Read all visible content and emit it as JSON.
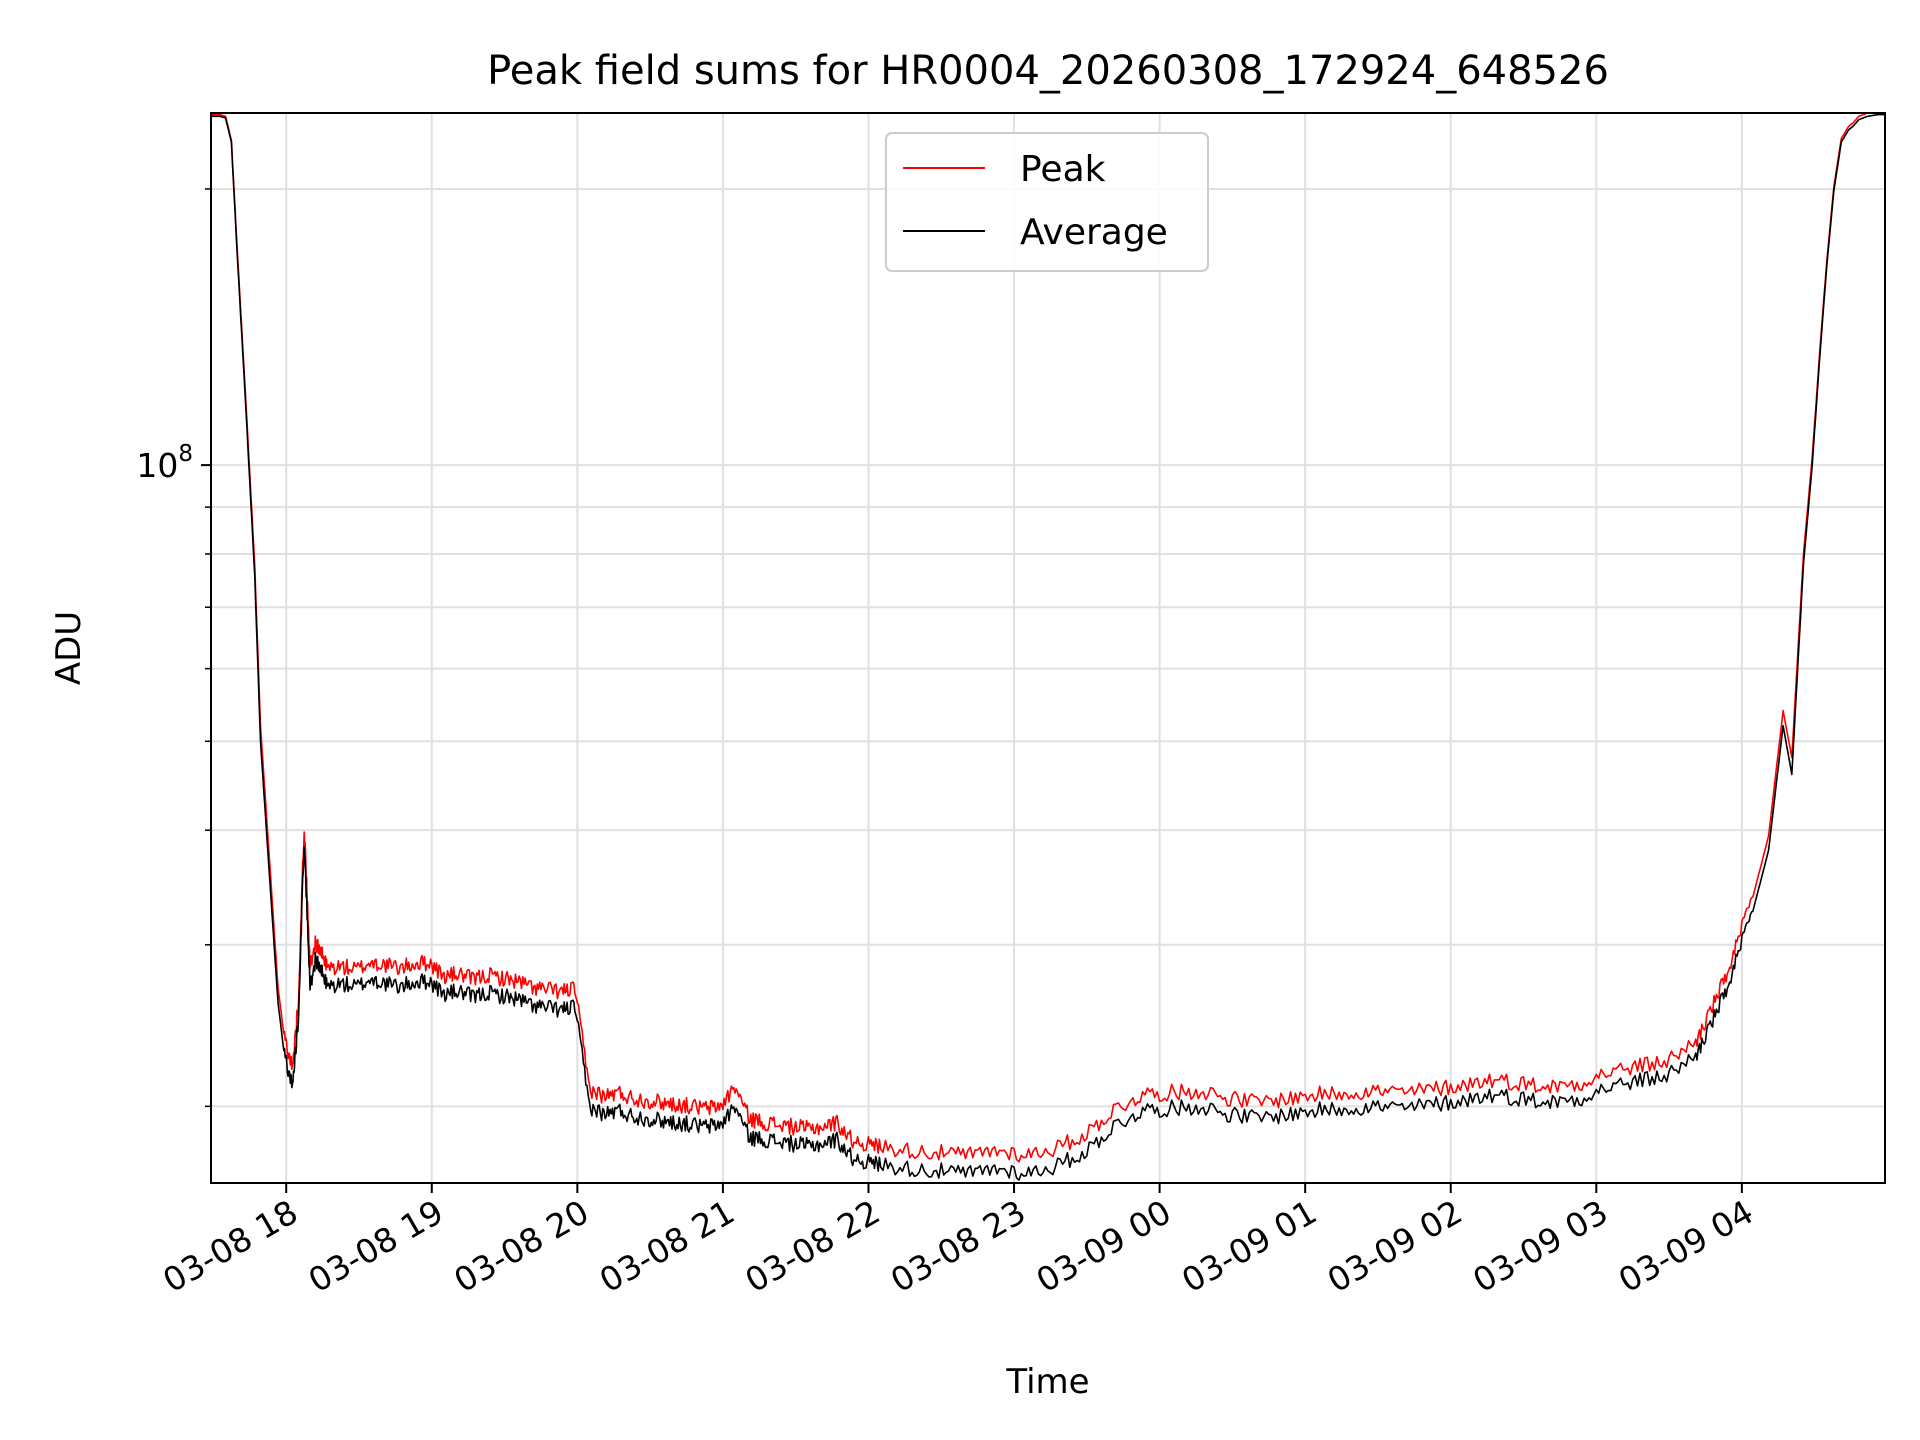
{
  "chart_data": {
    "type": "line",
    "title": "Peak field sums for HR0004_20260308_172924_648526",
    "xlabel": "Time",
    "ylabel": "ADU",
    "x_axis": {
      "unit": "hours since 03-08 17:29",
      "xlim": [
        0.0,
        11.5
      ],
      "ticks": [
        {
          "value": 0.5167,
          "label": "03-08 18"
        },
        {
          "value": 1.5167,
          "label": "03-08 19"
        },
        {
          "value": 2.5167,
          "label": "03-08 20"
        },
        {
          "value": 3.5167,
          "label": "03-08 21"
        },
        {
          "value": 4.5167,
          "label": "03-08 22"
        },
        {
          "value": 5.5167,
          "label": "03-08 23"
        },
        {
          "value": 6.5167,
          "label": "03-09 00"
        },
        {
          "value": 7.5167,
          "label": "03-09 01"
        },
        {
          "value": 8.5167,
          "label": "03-09 02"
        },
        {
          "value": 9.5167,
          "label": "03-09 03"
        },
        {
          "value": 10.5167,
          "label": "03-09 04"
        }
      ]
    },
    "y_axis": {
      "scale": "log",
      "ylim": [
        16500000,
        242000000
      ],
      "major_tick": {
        "value": 100000000,
        "base": "10",
        "exponent": "8"
      },
      "minor_ticks": [
        20000000,
        30000000,
        40000000,
        50000000,
        60000000,
        70000000,
        80000000,
        90000000,
        200000000
      ]
    },
    "grid": true,
    "legend": {
      "placement": "upper center",
      "entries": [
        {
          "label": "Peak",
          "color": "#ff0000"
        },
        {
          "label": "Average",
          "color": "#000000"
        }
      ]
    },
    "series": [
      {
        "name": "Average",
        "color": "#000000",
        "x": [
          0.0,
          0.06,
          0.1,
          0.14,
          0.18,
          0.24,
          0.3,
          0.34,
          0.4,
          0.46,
          0.5,
          0.56,
          0.6,
          0.64,
          0.68,
          0.72,
          0.76,
          0.8,
          0.9,
          1.0,
          1.1,
          1.2,
          1.3,
          1.4,
          1.5,
          1.6,
          1.7,
          1.8,
          1.9,
          2.0,
          2.1,
          2.2,
          2.3,
          2.42,
          2.5,
          2.6,
          2.7,
          2.8,
          2.9,
          3.0,
          3.1,
          3.2,
          3.3,
          3.4,
          3.5,
          3.6,
          3.7,
          3.8,
          3.9,
          4.0,
          4.1,
          4.2,
          4.3,
          4.4,
          4.5,
          4.6,
          4.8,
          5.0,
          5.2,
          5.4,
          5.6,
          5.8,
          6.0,
          6.2,
          6.4,
          6.6,
          6.8,
          7.0,
          7.2,
          7.4,
          7.6,
          7.8,
          8.0,
          8.2,
          8.4,
          8.6,
          8.8,
          9.0,
          9.2,
          9.4,
          9.6,
          9.8,
          10.0,
          10.2,
          10.3,
          10.4,
          10.5,
          10.6,
          10.7,
          10.8,
          10.86,
          10.9,
          10.94,
          11.0,
          11.05,
          11.1,
          11.15,
          11.2,
          11.25,
          11.28,
          11.32,
          11.38,
          11.45,
          11.5
        ],
        "y": [
          240000000,
          240000000,
          239000000,
          225000000,
          170000000,
          115000000,
          76000000,
          50000000,
          36000000,
          26000000,
          23000000,
          21000000,
          25000000,
          39000000,
          27000000,
          29000000,
          28000000,
          27000000,
          27200000,
          27000000,
          27500000,
          27200000,
          27000000,
          27300000,
          27400000,
          26500000,
          26700000,
          26300000,
          26600000,
          26400000,
          26200000,
          25800000,
          25600000,
          25500000,
          25700000,
          20000000,
          19600000,
          19800000,
          19500000,
          19400000,
          19300000,
          19200000,
          19100000,
          19000000,
          19100000,
          20000000,
          18500000,
          18400000,
          18300000,
          18200000,
          18100000,
          18200000,
          18400000,
          17600000,
          17400000,
          17300000,
          17100000,
          17000000,
          16900000,
          17100000,
          16900000,
          17200000,
          17800000,
          19000000,
          19800000,
          19900000,
          20000000,
          19600000,
          19400000,
          19600000,
          19800000,
          19900000,
          20000000,
          19900000,
          20100000,
          20300000,
          20600000,
          20400000,
          20200000,
          20400000,
          21000000,
          21300000,
          21600000,
          22700000,
          24500000,
          26500000,
          29500000,
          33000000,
          38000000,
          52000000,
          46000000,
          60000000,
          78000000,
          100000000,
          130000000,
          165000000,
          200000000,
          225000000,
          232000000,
          234000000,
          238000000,
          240000000,
          241000000,
          241000000
        ]
      },
      {
        "name": "Peak",
        "color": "#ff0000",
        "x": [
          0.0,
          0.06,
          0.1,
          0.14,
          0.18,
          0.24,
          0.3,
          0.34,
          0.4,
          0.46,
          0.5,
          0.56,
          0.6,
          0.64,
          0.68,
          0.72,
          0.76,
          0.8,
          0.9,
          1.0,
          1.1,
          1.2,
          1.3,
          1.4,
          1.5,
          1.6,
          1.7,
          1.8,
          1.9,
          2.0,
          2.1,
          2.2,
          2.3,
          2.42,
          2.5,
          2.6,
          2.7,
          2.8,
          2.9,
          3.0,
          3.1,
          3.2,
          3.3,
          3.4,
          3.5,
          3.6,
          3.7,
          3.8,
          3.9,
          4.0,
          4.1,
          4.2,
          4.3,
          4.4,
          4.5,
          4.6,
          4.8,
          5.0,
          5.2,
          5.4,
          5.6,
          5.8,
          6.0,
          6.2,
          6.4,
          6.6,
          6.8,
          7.0,
          7.2,
          7.4,
          7.6,
          7.8,
          8.0,
          8.2,
          8.4,
          8.6,
          8.8,
          9.0,
          9.2,
          9.4,
          9.6,
          9.8,
          10.0,
          10.2,
          10.3,
          10.4,
          10.5,
          10.6,
          10.7,
          10.8,
          10.86,
          10.9,
          10.94,
          11.0,
          11.05,
          11.1,
          11.15,
          11.2,
          11.25,
          11.28,
          11.32,
          11.38,
          11.45,
          11.5
        ],
        "y": [
          241000000,
          241000000,
          240000000,
          226000000,
          172000000,
          117000000,
          78000000,
          52000000,
          37500000,
          27000000,
          24000000,
          22000000,
          26000000,
          40500000,
          28500000,
          30200000,
          29300000,
          28300000,
          28400000,
          28200000,
          28700000,
          28500000,
          28300000,
          28600000,
          28700000,
          27700000,
          27900000,
          27500000,
          27800000,
          27600000,
          27400000,
          27000000,
          26800000,
          26700000,
          26900000,
          20900000,
          20500000,
          20700000,
          20400000,
          20300000,
          20200000,
          20100000,
          20000000,
          19900000,
          20000000,
          21000000,
          19400000,
          19200000,
          19100000,
          19000000,
          18900000,
          19000000,
          19200000,
          18400000,
          18200000,
          18100000,
          17900000,
          17800000,
          17700000,
          17900000,
          17700000,
          18000000,
          18600000,
          19800000,
          20600000,
          20700000,
          20800000,
          20400000,
          20200000,
          20400000,
          20600000,
          20700000,
          20800000,
          20700000,
          20900000,
          21100000,
          21400000,
          21200000,
          21000000,
          21200000,
          21800000,
          22100000,
          22400000,
          23500000,
          25400000,
          27500000,
          30600000,
          34200000,
          39400000,
          54000000,
          48000000,
          62000000,
          80000000,
          102000000,
          132000000,
          167000000,
          202000000,
          227000000,
          234000000,
          236000000,
          240000000,
          242000000,
          242000000,
          242000000
        ]
      }
    ]
  }
}
